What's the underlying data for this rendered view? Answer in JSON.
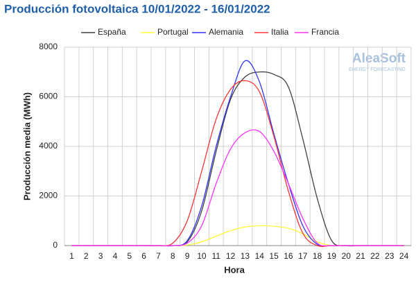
{
  "chart_data": {
    "type": "line",
    "title": "Producción fotovoltaica 10/01/2022 - 16/01/2022",
    "x_label": "Hora",
    "y_label": "Producción media (MWh)",
    "watermark": [
      "AleaSoft",
      "ENERGY FORECASTING"
    ],
    "categories": [
      "1",
      "2",
      "3",
      "4",
      "5",
      "6",
      "7",
      "8",
      "9",
      "10",
      "11",
      "12",
      "13",
      "14",
      "15",
      "16",
      "17",
      "18",
      "19",
      "20",
      "21",
      "22",
      "23",
      "24"
    ],
    "series": [
      {
        "name": "España",
        "color": "#404040",
        "values": [
          0,
          0,
          0,
          0,
          0,
          0,
          0,
          0,
          150,
          1400,
          3800,
          5900,
          6800,
          7000,
          6900,
          6400,
          4300,
          1900,
          200,
          0,
          0,
          0,
          0,
          0
        ]
      },
      {
        "name": "Portugal",
        "color": "#ffff33",
        "values": [
          0,
          0,
          0,
          0,
          0,
          0,
          0,
          0,
          20,
          150,
          380,
          600,
          750,
          800,
          780,
          700,
          480,
          150,
          0,
          0,
          0,
          0,
          0,
          0
        ]
      },
      {
        "name": "Alemania",
        "color": "#3333ff",
        "values": [
          0,
          0,
          0,
          0,
          0,
          0,
          0,
          0,
          200,
          1600,
          4000,
          6000,
          7450,
          6600,
          4500,
          2500,
          800,
          50,
          0,
          0,
          0,
          0,
          0,
          0
        ]
      },
      {
        "name": "Italia",
        "color": "#ff3333",
        "values": [
          0,
          0,
          0,
          0,
          0,
          0,
          0,
          100,
          1000,
          3000,
          5100,
          6300,
          6650,
          6200,
          4400,
          2200,
          500,
          0,
          0,
          0,
          0,
          0,
          0,
          0
        ]
      },
      {
        "name": "Francia",
        "color": "#ff33ff",
        "values": [
          0,
          0,
          0,
          0,
          0,
          0,
          0,
          0,
          100,
          800,
          2500,
          3900,
          4550,
          4600,
          3800,
          2500,
          1100,
          100,
          0,
          0,
          0,
          0,
          0,
          0
        ]
      }
    ],
    "ylim": [
      0,
      8000
    ],
    "yticks": [
      0,
      2000,
      4000,
      6000,
      8000
    ],
    "grid": true,
    "legend": "top"
  }
}
